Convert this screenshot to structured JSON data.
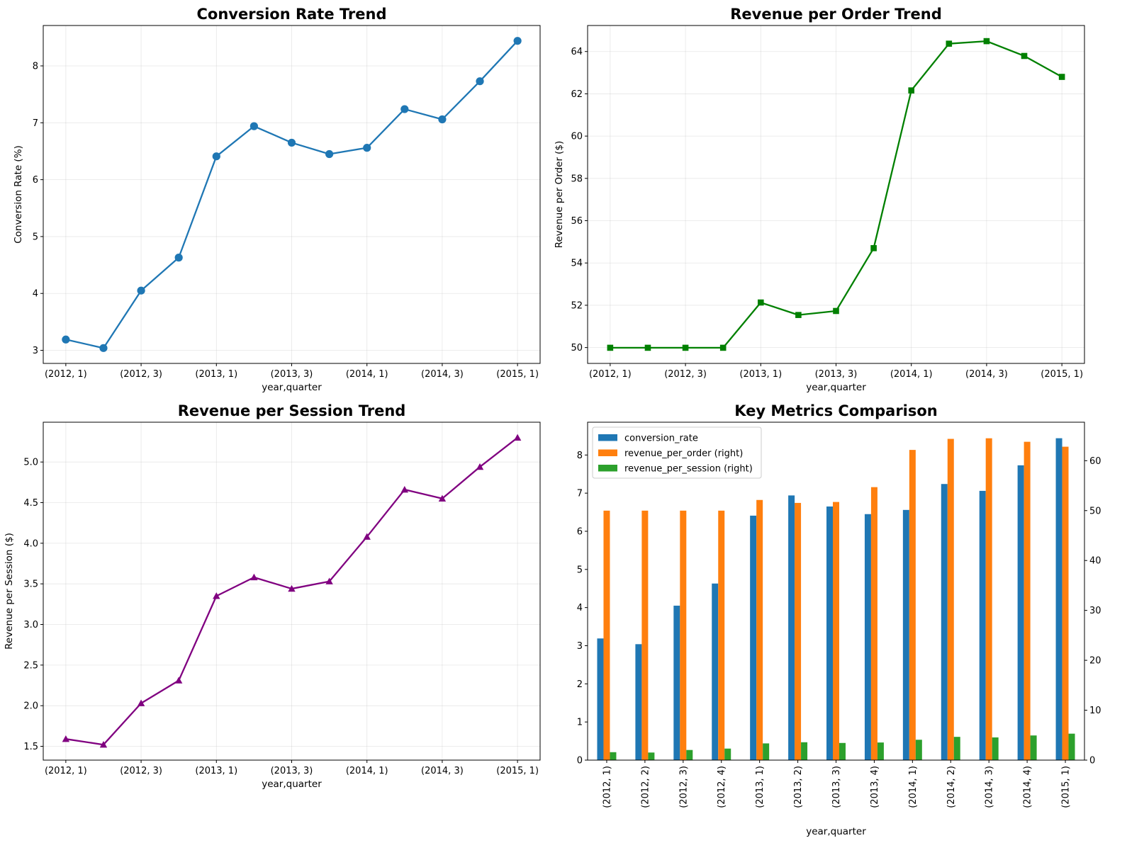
{
  "chart_data": [
    {
      "id": "conv",
      "type": "line",
      "title": "Conversion Rate Trend",
      "xlabel": "year,quarter",
      "ylabel": "Conversion Rate (%)",
      "categories": [
        "(2012, 1)",
        "(2012, 2)",
        "(2012, 3)",
        "(2012, 4)",
        "(2013, 1)",
        "(2013, 2)",
        "(2013, 3)",
        "(2013, 4)",
        "(2014, 1)",
        "(2014, 2)",
        "(2014, 3)",
        "(2014, 4)",
        "(2015, 1)"
      ],
      "xtick_labels": [
        "(2012, 1)",
        "(2012, 3)",
        "(2013, 1)",
        "(2013, 3)",
        "(2014, 1)",
        "(2014, 3)",
        "(2015, 1)"
      ],
      "values": [
        3.19,
        3.04,
        4.05,
        4.63,
        6.41,
        6.94,
        6.65,
        6.45,
        6.56,
        7.24,
        7.06,
        7.73,
        8.44
      ],
      "yticks": [
        3,
        4,
        5,
        6,
        7,
        8
      ],
      "ylim": [
        2.77,
        8.71
      ],
      "marker": "circle",
      "color": "#1f77b4",
      "grid": true
    },
    {
      "id": "rpo",
      "type": "line",
      "title": "Revenue per Order Trend",
      "xlabel": "year,quarter",
      "ylabel": "Revenue per Order ($)",
      "categories": [
        "(2012, 1)",
        "(2012, 2)",
        "(2012, 3)",
        "(2012, 4)",
        "(2013, 1)",
        "(2013, 2)",
        "(2013, 3)",
        "(2013, 4)",
        "(2014, 1)",
        "(2014, 2)",
        "(2014, 3)",
        "(2014, 4)",
        "(2015, 1)"
      ],
      "xtick_labels": [
        "(2012, 1)",
        "(2012, 3)",
        "(2013, 1)",
        "(2013, 3)",
        "(2014, 1)",
        "(2014, 3)",
        "(2015, 1)"
      ],
      "values": [
        49.99,
        49.99,
        49.99,
        49.99,
        52.13,
        51.54,
        51.73,
        54.7,
        62.16,
        64.37,
        64.49,
        63.79,
        62.8
      ],
      "yticks": [
        50,
        52,
        54,
        56,
        58,
        60,
        62,
        64
      ],
      "ylim": [
        49.25,
        65.23
      ],
      "marker": "square",
      "color": "#008000",
      "grid": true
    },
    {
      "id": "rps",
      "type": "line",
      "title": "Revenue per Session Trend",
      "xlabel": "year,quarter",
      "ylabel": "Revenue per Session ($)",
      "categories": [
        "(2012, 1)",
        "(2012, 2)",
        "(2012, 3)",
        "(2012, 4)",
        "(2013, 1)",
        "(2013, 2)",
        "(2013, 3)",
        "(2013, 4)",
        "(2014, 1)",
        "(2014, 2)",
        "(2014, 3)",
        "(2014, 4)",
        "(2015, 1)"
      ],
      "xtick_labels": [
        "(2012, 1)",
        "(2012, 3)",
        "(2013, 1)",
        "(2013, 3)",
        "(2014, 1)",
        "(2014, 3)",
        "(2015, 1)"
      ],
      "values": [
        1.59,
        1.52,
        2.03,
        2.31,
        3.35,
        3.58,
        3.44,
        3.53,
        4.08,
        4.66,
        4.55,
        4.94,
        5.3
      ],
      "yticks": [
        1.5,
        2.0,
        2.5,
        3.0,
        3.5,
        4.0,
        4.5,
        5.0
      ],
      "ytick_labels": [
        "1.5",
        "2.0",
        "2.5",
        "3.0",
        "3.5",
        "4.0",
        "4.5",
        "5.0"
      ],
      "ylim": [
        1.33,
        5.49
      ],
      "marker": "triangle",
      "color": "#800080",
      "grid": true
    },
    {
      "id": "cmp",
      "type": "bar",
      "title": "Key Metrics Comparison",
      "xlabel": "year,quarter",
      "categories": [
        "(2012, 1)",
        "(2012, 2)",
        "(2012, 3)",
        "(2012, 4)",
        "(2013, 1)",
        "(2013, 2)",
        "(2013, 3)",
        "(2013, 4)",
        "(2014, 1)",
        "(2014, 2)",
        "(2014, 3)",
        "(2014, 4)",
        "(2015, 1)"
      ],
      "left_axis": {
        "ylim": [
          0,
          8.86
        ],
        "yticks": [
          0,
          1,
          2,
          3,
          4,
          5,
          6,
          7,
          8
        ]
      },
      "right_axis": {
        "ylim": [
          0,
          67.71
        ],
        "yticks": [
          0,
          10,
          20,
          30,
          40,
          50,
          60
        ]
      },
      "series": [
        {
          "name": "conversion_rate",
          "axis": "left",
          "color": "#1f77b4",
          "values": [
            3.19,
            3.04,
            4.05,
            4.63,
            6.41,
            6.94,
            6.65,
            6.45,
            6.56,
            7.24,
            7.06,
            7.73,
            8.44
          ]
        },
        {
          "name": "revenue_per_order (right)",
          "axis": "right",
          "color": "#ff7f0e",
          "values": [
            49.99,
            49.99,
            49.99,
            49.99,
            52.13,
            51.54,
            51.73,
            54.7,
            62.16,
            64.37,
            64.49,
            63.79,
            62.8
          ]
        },
        {
          "name": "revenue_per_session (right)",
          "axis": "right",
          "color": "#2ca02c",
          "values": [
            1.59,
            1.52,
            2.03,
            2.31,
            3.35,
            3.58,
            3.44,
            3.53,
            4.08,
            4.66,
            4.55,
            4.94,
            5.3
          ]
        }
      ],
      "legend": "upper-left",
      "grid": false
    }
  ]
}
